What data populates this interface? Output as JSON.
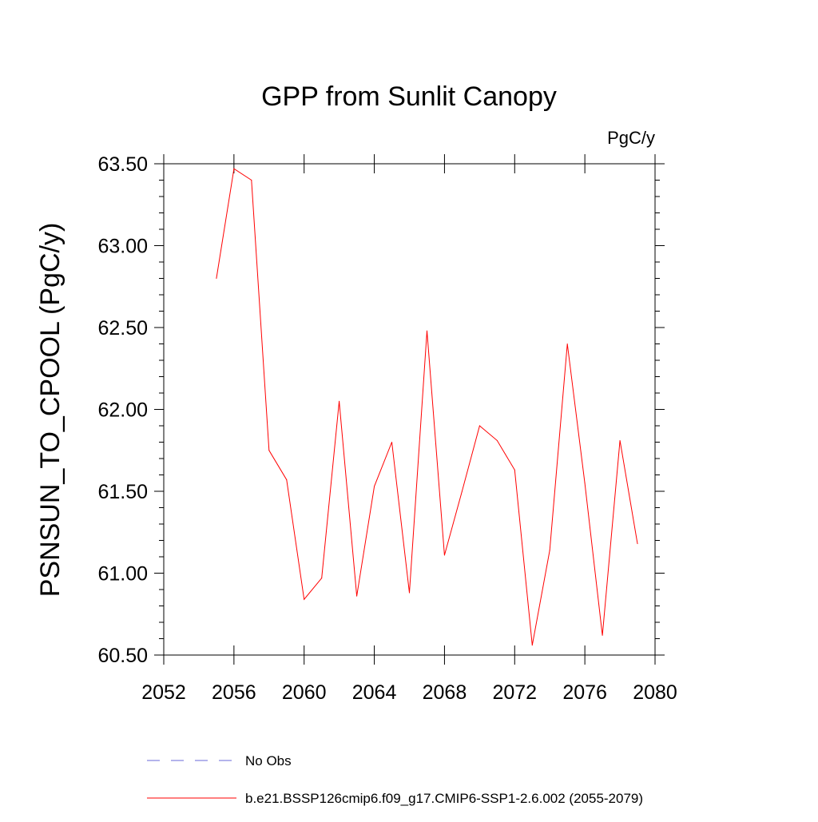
{
  "chart_data": {
    "type": "line",
    "title": "GPP from Sunlit Canopy",
    "units_label": "PgC/y",
    "xlabel": "",
    "ylabel": "PSNSUN_TO_CPOOL  (PgC/y)",
    "xlim": [
      2052,
      2080
    ],
    "ylim": [
      60.5,
      63.5
    ],
    "x_ticks": [
      2052,
      2056,
      2060,
      2064,
      2068,
      2072,
      2076,
      2080
    ],
    "x_tick_labels": [
      "2052",
      "2056",
      "2060",
      "2064",
      "2068",
      "2072",
      "2076",
      "2080"
    ],
    "y_ticks": [
      60.5,
      61.0,
      61.5,
      62.0,
      62.5,
      63.0,
      63.5
    ],
    "y_tick_labels": [
      "60.50",
      "61.00",
      "61.50",
      "62.00",
      "62.50",
      "63.00",
      "63.50"
    ],
    "grid": false,
    "legend_position": "bottom",
    "series": [
      {
        "name": "b.e21.BSSP126cmip6.f09_g17.CMIP6-SSP1-2.6.002 (2055-2079)",
        "color": "#ff0000",
        "style": "solid",
        "x": [
          2055,
          2056,
          2057,
          2058,
          2059,
          2060,
          2061,
          2062,
          2063,
          2064,
          2065,
          2066,
          2067,
          2068,
          2069,
          2070,
          2071,
          2072,
          2073,
          2074,
          2075,
          2076,
          2077,
          2078,
          2079
        ],
        "values": [
          62.8,
          63.47,
          63.4,
          61.75,
          61.57,
          60.84,
          60.97,
          62.05,
          60.86,
          61.53,
          61.8,
          60.88,
          62.48,
          61.11,
          61.5,
          61.9,
          61.81,
          61.63,
          60.56,
          61.14,
          62.4,
          61.55,
          60.62,
          61.81,
          61.18
        ]
      }
    ],
    "legend": [
      {
        "label": "No Obs",
        "color": "#6a6ad8",
        "style": "dashed"
      },
      {
        "label": "b.e21.BSSP126cmip6.f09_g17.CMIP6-SSP1-2.6.002 (2055-2079)",
        "color": "#ff0000",
        "style": "solid"
      }
    ]
  }
}
